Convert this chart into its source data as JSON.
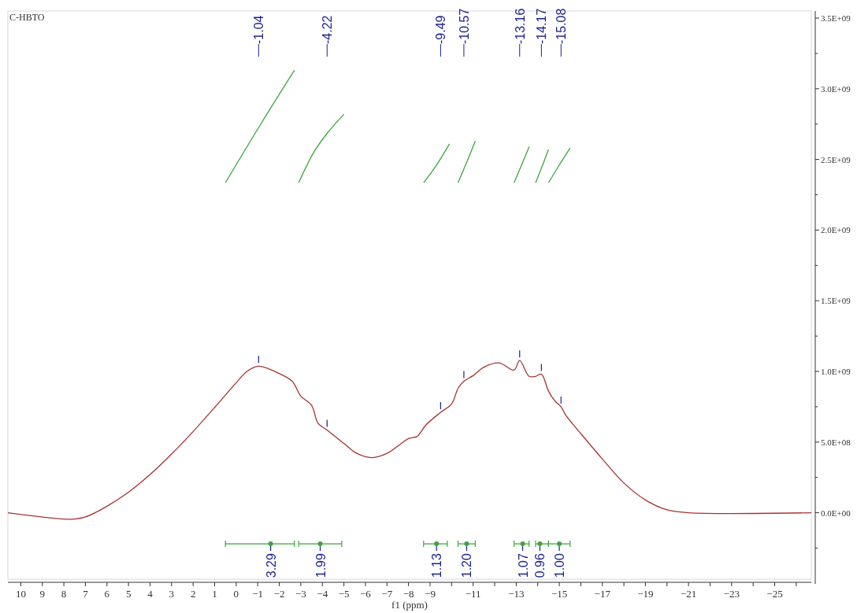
{
  "chart_data": {
    "type": "line",
    "title": "C-HBTO",
    "xlabel": "f1 (ppm)",
    "xlim": [
      10.6,
      -26.7
    ],
    "ylim": [
      -470000000,
      3550000000
    ],
    "xticks": [
      10,
      9,
      8,
      7,
      6,
      5,
      4,
      3,
      2,
      1,
      0,
      -1,
      -2,
      -3,
      -4,
      -5,
      -6,
      -7,
      -8,
      -9,
      {
        "value": -10,
        "label": null
      },
      -11,
      {
        "value": -12,
        "label": null
      },
      -13,
      {
        "value": -14,
        "label": null
      },
      -15,
      {
        "value": -16,
        "label": null
      },
      -17,
      {
        "value": -18,
        "label": null
      },
      -19,
      {
        "value": -20,
        "label": null
      },
      -21,
      {
        "value": -22,
        "label": null
      },
      -23,
      {
        "value": -24,
        "label": null
      },
      -25,
      {
        "value": -26,
        "label": null
      }
    ],
    "yticks": [
      {
        "value": -250000000,
        "label": null
      },
      {
        "value": 0,
        "label": "0.0E+00"
      },
      {
        "value": 250000000,
        "label": null
      },
      {
        "value": 500000000,
        "label": "5.0E+08"
      },
      {
        "value": 750000000,
        "label": null
      },
      {
        "value": 1000000000,
        "label": "1.0E+09"
      },
      {
        "value": 1250000000,
        "label": null
      },
      {
        "value": 1500000000,
        "label": "1.5E+09"
      },
      {
        "value": 1750000000,
        "label": null
      },
      {
        "value": 2000000000,
        "label": "2.0E+09"
      },
      {
        "value": 2250000000,
        "label": null
      },
      {
        "value": 2500000000,
        "label": "2.5E+09"
      },
      {
        "value": 2750000000,
        "label": null
      },
      {
        "value": 3000000000,
        "label": "3.0E+09"
      },
      {
        "value": 3250000000,
        "label": null
      },
      {
        "value": 3500000000,
        "label": "3.5E+09"
      }
    ],
    "series": [
      {
        "color": "#a83232",
        "x": [
          10.6,
          8,
          7.5,
          7,
          6,
          5,
          4,
          3,
          2,
          1,
          0,
          -0.5,
          -1.04,
          -2,
          -2.6,
          -3,
          -3.5,
          -3.8,
          -4.22,
          -5,
          -5.6,
          -6.3,
          -7,
          -8,
          -8.4,
          -8.8,
          -9.49,
          -10,
          -10.3,
          -10.57,
          -11,
          -11.5,
          -12.2,
          -12.9,
          -13.16,
          -13.6,
          -13.9,
          -14.17,
          -14.5,
          -14.8,
          -15.08,
          -15.3,
          -16,
          -17,
          -18,
          -19,
          -20,
          -21,
          -26.7
        ],
        "values": [
          0,
          -45000000,
          -45000000,
          -30000000,
          46000000,
          145000000,
          270000000,
          415000000,
          575000000,
          745000000,
          920000000,
          1000000000,
          1037000000,
          985000000,
          930000000,
          825000000,
          760000000,
          633000000,
          585000000,
          490000000,
          420000000,
          390000000,
          420000000,
          525000000,
          540000000,
          620000000,
          710000000,
          770000000,
          880000000,
          930000000,
          970000000,
          1030000000,
          1060000000,
          1010000000,
          1077000000,
          965000000,
          965000000,
          980000000,
          860000000,
          790000000,
          750000000,
          690000000,
          560000000,
          380000000,
          210000000,
          90000000,
          20000000,
          0,
          0
        ]
      },
      {
        "type": "line",
        "color": "#3da43d",
        "x": [
          0.5,
          -1.1,
          -2.7
        ],
        "values": [
          2335000000,
          2740000000,
          3130000000
        ]
      },
      {
        "type": "line",
        "color": "#3da43d",
        "x": [
          -2.9,
          -3.6,
          -4.2,
          -5
        ],
        "values": [
          2335000000,
          2550000000,
          2680000000,
          2820000000
        ]
      },
      {
        "type": "line",
        "color": "#3da43d",
        "x": [
          -8.7,
          -9.3,
          -9.9
        ],
        "values": [
          2335000000,
          2460000000,
          2610000000
        ]
      },
      {
        "type": "line",
        "color": "#3da43d",
        "x": [
          -10.3,
          -10.7,
          -11.1
        ],
        "values": [
          2335000000,
          2480000000,
          2630000000
        ]
      },
      {
        "type": "line",
        "color": "#3da43d",
        "x": [
          -12.9,
          -13.25,
          -13.6
        ],
        "values": [
          2335000000,
          2460000000,
          2590000000
        ]
      },
      {
        "type": "line",
        "color": "#3da43d",
        "x": [
          -13.9,
          -14.2,
          -14.5
        ],
        "values": [
          2335000000,
          2450000000,
          2570000000
        ]
      },
      {
        "type": "line",
        "color": "#3da43d",
        "x": [
          -14.5,
          -15,
          -15.5
        ],
        "values": [
          2335000000,
          2460000000,
          2580000000
        ]
      },
      {
        "type": "scatter",
        "color": "#3da43d",
        "x": [
          -1.6,
          -3.9,
          -9.3,
          -10.7,
          -13.3,
          -14.1,
          -15.0
        ],
        "values": [
          -220000000,
          -220000000,
          -220000000,
          -220000000,
          -220000000,
          -220000000,
          -220000000
        ],
        "xerrors": [
          [
            -2.7,
            0.5
          ],
          [
            -4.9,
            -2.9
          ],
          [
            -9.8,
            -8.7
          ],
          [
            -11.1,
            -10.3
          ],
          [
            -13.6,
            -12.9
          ],
          [
            -14.5,
            -13.9
          ],
          [
            -15.5,
            -14.5
          ]
        ]
      }
    ],
    "annotations": [
      {
        "text": "-1.04",
        "x": -1.04
      },
      {
        "text": "-4.22",
        "x": -4.22
      },
      {
        "text": "-9.49",
        "x": -9.49
      },
      {
        "text": "-10.57",
        "x": -10.57
      },
      {
        "text": "-13.16",
        "x": -13.16
      },
      {
        "text": "-14.17",
        "x": -14.17
      },
      {
        "text": "-15.08",
        "x": -15.08
      },
      {
        "text": "3.29",
        "x": -1.6,
        "y": -220000000
      },
      {
        "text": "1.99",
        "x": -3.9,
        "y": -220000000
      },
      {
        "text": "1.13",
        "x": -9.3,
        "y": -220000000
      },
      {
        "text": "1.20",
        "x": -10.7,
        "y": -220000000
      },
      {
        "text": "1.07",
        "x": -13.3,
        "y": -220000000
      },
      {
        "text": "0.96",
        "x": -14.1,
        "y": -220000000
      },
      {
        "text": "1.00",
        "x": -15.0,
        "y": -220000000
      }
    ],
    "grid": false
  }
}
